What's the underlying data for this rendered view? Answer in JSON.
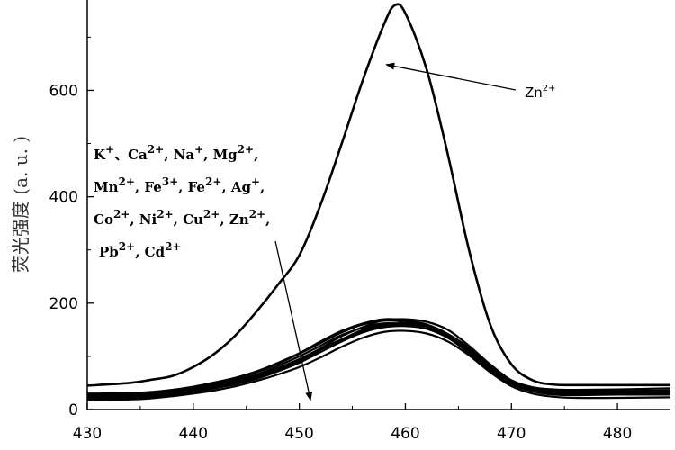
{
  "chart_data": {
    "type": "line",
    "title": "",
    "xlabel": "",
    "ylabel": "荧光强度 (a. u. )",
    "xlim": [
      430,
      485
    ],
    "ylim": [
      0,
      770
    ],
    "x_ticks": [
      430,
      440,
      450,
      460,
      470,
      480
    ],
    "y_ticks": [
      0,
      200,
      400,
      600
    ],
    "x_tick_labels": [
      "430",
      "440",
      "450",
      "460",
      "470",
      "480"
    ],
    "y_tick_labels": [
      "0",
      "200",
      "400",
      "600"
    ],
    "grid": false,
    "legend": "none",
    "line_color": "#000000",
    "series": [
      {
        "name": "Zn2+",
        "x": [
          430,
          434,
          436,
          438,
          440,
          442,
          444,
          446,
          448,
          450,
          452,
          454,
          456,
          458,
          459,
          460,
          462,
          464,
          466,
          468,
          470,
          472,
          474,
          476,
          480,
          485
        ],
        "values": [
          45,
          50,
          56,
          63,
          80,
          105,
          140,
          185,
          235,
          290,
          385,
          500,
          620,
          725,
          760,
          745,
          640,
          480,
          300,
          160,
          85,
          55,
          47,
          46,
          46,
          46
        ]
      },
      {
        "name": "",
        "x": [
          430,
          434,
          436,
          438,
          440,
          442,
          444,
          446,
          448,
          450,
          452,
          454,
          456,
          458,
          460,
          462,
          464,
          466,
          468,
          470,
          472,
          474,
          476,
          480,
          485
        ],
        "values": [
          25,
          26,
          28,
          32,
          38,
          45,
          53,
          63,
          78,
          95,
          115,
          138,
          155,
          168,
          170,
          165,
          150,
          120,
          85,
          55,
          40,
          35,
          34,
          35,
          36
        ]
      },
      {
        "name": "",
        "x": [
          430,
          434,
          436,
          438,
          440,
          442,
          444,
          446,
          448,
          450,
          452,
          454,
          456,
          458,
          460,
          462,
          464,
          466,
          468,
          470,
          472,
          474,
          476,
          480,
          485
        ],
        "values": [
          20,
          22,
          24,
          28,
          33,
          40,
          48,
          58,
          72,
          88,
          108,
          128,
          145,
          155,
          157,
          152,
          135,
          108,
          75,
          48,
          34,
          28,
          27,
          28,
          28
        ]
      },
      {
        "name": "",
        "x": [
          430,
          434,
          436,
          438,
          440,
          442,
          444,
          446,
          448,
          450,
          452,
          454,
          456,
          458,
          460,
          462,
          464,
          466,
          468,
          470,
          472,
          474,
          476,
          480,
          485
        ],
        "values": [
          30,
          31,
          33,
          37,
          43,
          51,
          60,
          72,
          88,
          106,
          128,
          148,
          162,
          170,
          168,
          160,
          142,
          112,
          80,
          55,
          42,
          38,
          37,
          38,
          40
        ]
      },
      {
        "name": "",
        "x": [
          430,
          434,
          436,
          438,
          440,
          442,
          444,
          446,
          448,
          450,
          452,
          454,
          456,
          458,
          460,
          462,
          464,
          466,
          468,
          470,
          472,
          474,
          476,
          480,
          485
        ],
        "values": [
          18,
          19,
          21,
          25,
          30,
          36,
          44,
          54,
          66,
          80,
          98,
          118,
          135,
          146,
          148,
          143,
          128,
          102,
          70,
          44,
          30,
          24,
          22,
          22,
          23
        ]
      },
      {
        "name": "",
        "x": [
          430,
          434,
          436,
          438,
          440,
          442,
          444,
          446,
          448,
          450,
          452,
          454,
          456,
          458,
          460,
          462,
          464,
          466,
          468,
          470,
          472,
          474,
          476,
          480,
          485
        ],
        "values": [
          28,
          29,
          31,
          35,
          41,
          49,
          58,
          70,
          86,
          105,
          125,
          145,
          160,
          167,
          165,
          158,
          140,
          110,
          78,
          52,
          38,
          32,
          31,
          32,
          33
        ]
      },
      {
        "name": "",
        "x": [
          430,
          434,
          436,
          438,
          440,
          442,
          444,
          446,
          448,
          450,
          452,
          454,
          456,
          458,
          460,
          462,
          464,
          466,
          468,
          470,
          472,
          474,
          476,
          480,
          485
        ],
        "values": [
          22,
          23,
          25,
          29,
          35,
          42,
          50,
          60,
          74,
          90,
          112,
          132,
          150,
          160,
          162,
          156,
          138,
          110,
          77,
          50,
          35,
          29,
          28,
          29,
          30
        ]
      },
      {
        "name": "",
        "x": [
          430,
          434,
          436,
          438,
          440,
          442,
          444,
          446,
          448,
          450,
          452,
          454,
          456,
          458,
          460,
          462,
          464,
          466,
          468,
          470,
          472,
          474,
          476,
          480,
          485
        ],
        "values": [
          26,
          27,
          29,
          33,
          39,
          46,
          55,
          66,
          82,
          100,
          120,
          140,
          154,
          162,
          160,
          152,
          135,
          106,
          74,
          48,
          36,
          31,
          30,
          31,
          32
        ]
      },
      {
        "name": "",
        "x": [
          430,
          434,
          436,
          438,
          440,
          442,
          444,
          446,
          448,
          450,
          452,
          454,
          456,
          458,
          460,
          462,
          464,
          466,
          468,
          470,
          472,
          474,
          476,
          480,
          485
        ],
        "values": [
          24,
          25,
          27,
          31,
          36,
          43,
          52,
          62,
          76,
          93,
          113,
          132,
          148,
          158,
          161,
          157,
          142,
          116,
          82,
          52,
          37,
          30,
          29,
          30,
          31
        ]
      }
    ],
    "annotations": [
      {
        "id": "zn",
        "text": "Zn",
        "sup": "2+",
        "arrow_to": {
          "x": 456.5,
          "y": 640
        }
      },
      {
        "id": "ions",
        "lines": [
          [
            [
              "K",
              "+"
            ],
            [
              "、Ca",
              "2+"
            ],
            [
              ", Na",
              "+"
            ],
            [
              ", Mg",
              "2+"
            ],
            [
              ",",
              ""
            ]
          ],
          [
            [
              "Mn",
              "2+"
            ],
            [
              ", Fe",
              "3+"
            ],
            [
              ", Fe",
              "2+"
            ],
            [
              ", Ag",
              "+"
            ],
            [
              ",",
              ""
            ]
          ],
          [
            [
              "Co",
              "2+"
            ],
            [
              ", Ni",
              "2+"
            ],
            [
              ", Cu",
              "2+"
            ],
            [
              ", Zn",
              "2+"
            ],
            [
              ",",
              ""
            ]
          ],
          [
            [
              "Pb",
              "2+"
            ],
            [
              ",  Cd",
              "2+"
            ]
          ]
        ],
        "arrow_to": {
          "x": 457,
          "y": 170
        }
      }
    ]
  }
}
